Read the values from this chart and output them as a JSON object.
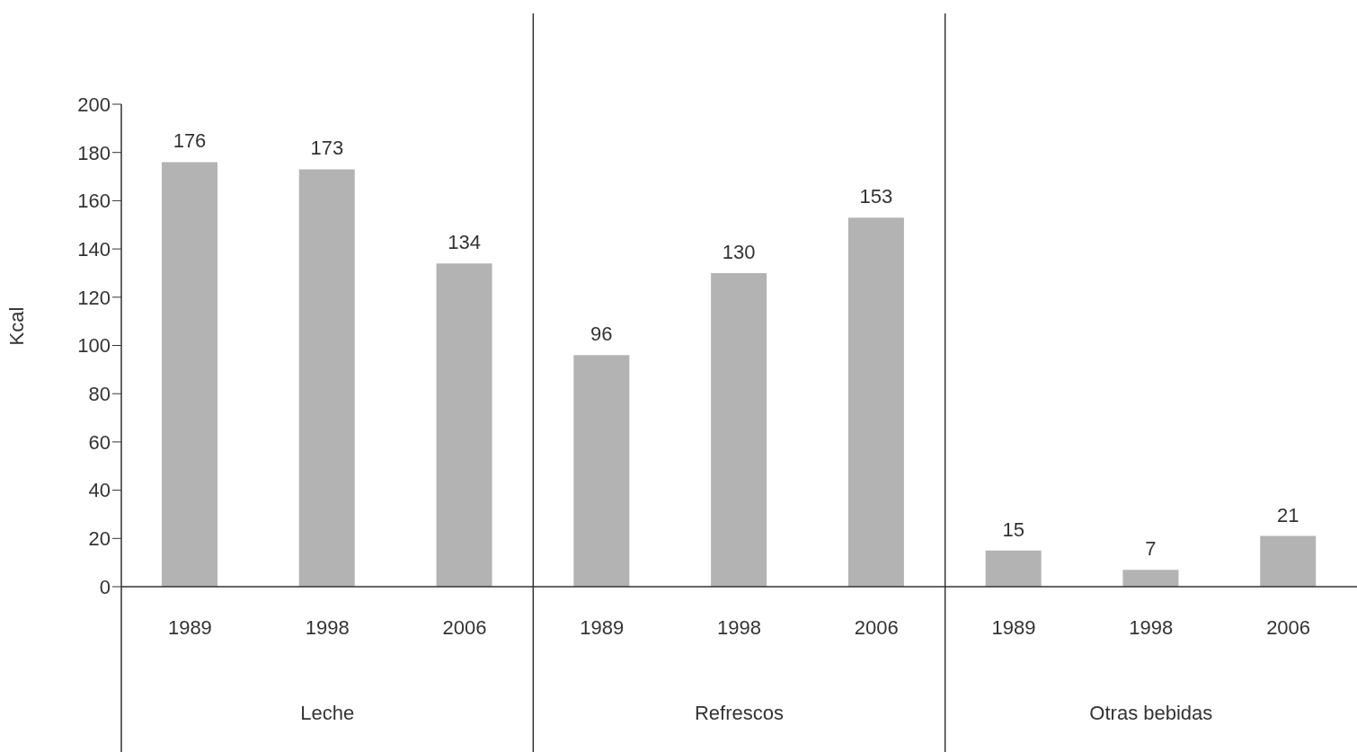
{
  "chart_data": {
    "type": "bar",
    "ylabel": "Kcal",
    "categories": [
      "1989",
      "1998",
      "2006",
      "1989",
      "1998",
      "2006",
      "1989",
      "1998",
      "2006"
    ],
    "values": [
      176,
      173,
      134,
      96,
      130,
      153,
      15,
      7,
      21
    ],
    "color": "#b3b3b3",
    "ylim": [
      0,
      200
    ],
    "yticks": [
      0,
      20,
      40,
      60,
      80,
      100,
      120,
      140,
      160,
      180,
      200
    ],
    "data_labels": true,
    "annotations": [
      "Leche",
      "Refrescos",
      "Otras bebidas"
    ]
  }
}
